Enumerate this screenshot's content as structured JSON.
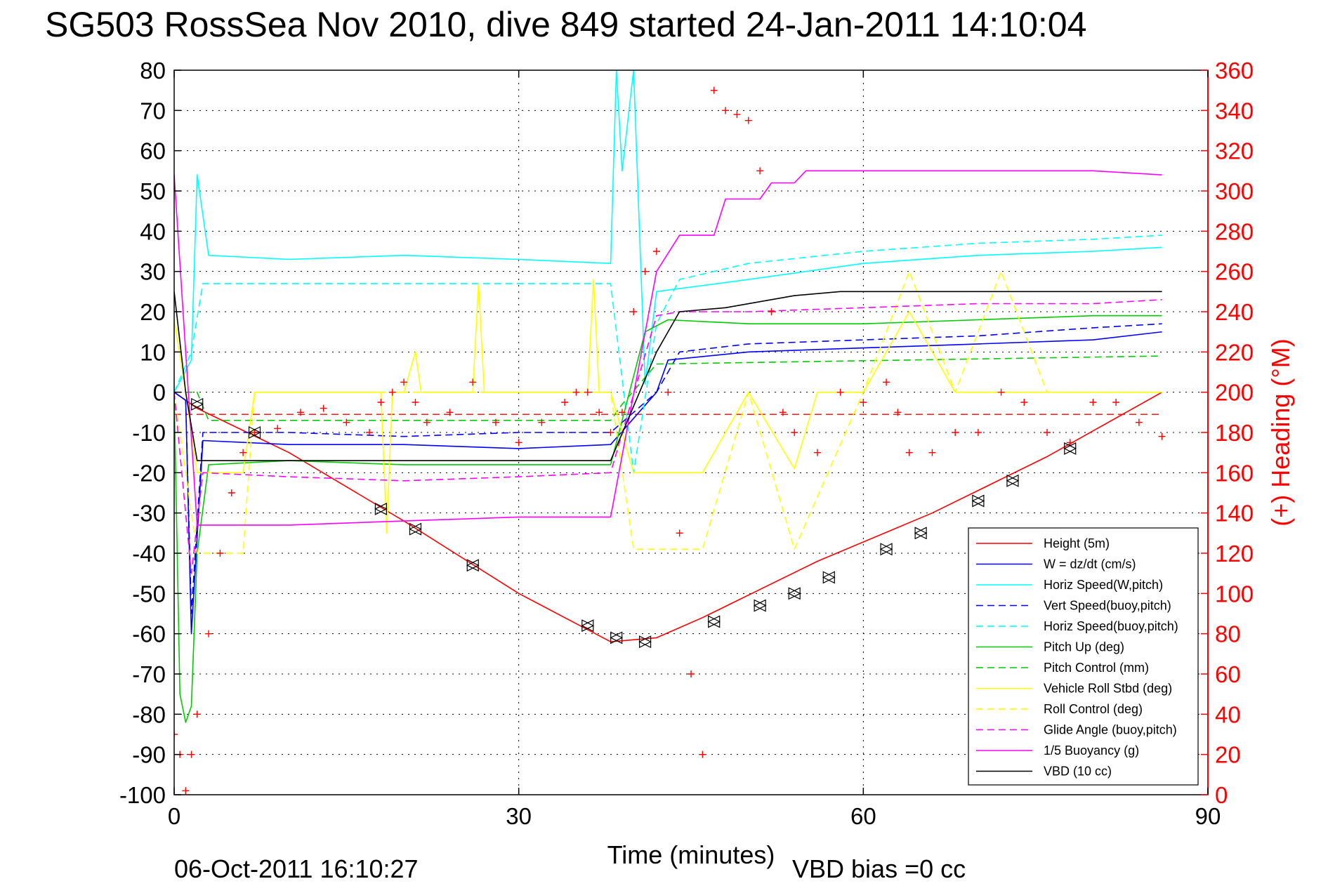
{
  "chart_data": {
    "type": "line",
    "title": "SG503 RossSea Nov 2010, dive 849 started 24-Jan-2011 14:10:04",
    "xlabel": "Time (minutes)",
    "ylabel": "",
    "y2label": "(+) Heading (°M)",
    "xlim": [
      0,
      90
    ],
    "ylim": [
      -100,
      80
    ],
    "y2lim": [
      0,
      360
    ],
    "x_ticks": [
      0,
      30,
      60,
      90
    ],
    "y_ticks": [
      80,
      70,
      60,
      50,
      40,
      30,
      20,
      10,
      0,
      -10,
      -20,
      -30,
      -40,
      -50,
      -60,
      -70,
      -80,
      -90,
      -100
    ],
    "y2_ticks": [
      360,
      340,
      320,
      300,
      280,
      260,
      240,
      220,
      200,
      180,
      160,
      140,
      120,
      100,
      80,
      60,
      40,
      20,
      0
    ],
    "grid": true,
    "legend_position": "bottom-right",
    "footer_date": "06-Oct-2011 16:10:27",
    "footer_note": "VBD bias =0 cc",
    "series": [
      {
        "name": "Height (5m)",
        "color": "#ff0000",
        "style": "solid",
        "x": [
          0,
          2,
          10,
          20,
          30,
          38,
          42,
          46,
          56,
          66,
          76,
          86
        ],
        "y": [
          0,
          -4,
          -15,
          -32,
          -50,
          -62,
          -61,
          -56,
          -42,
          -30,
          -16,
          0
        ]
      },
      {
        "name": "W = dz/dt (cm/s)",
        "color": "#0000ff",
        "style": "solid",
        "x": [
          0,
          1,
          1.5,
          2.5,
          10,
          20,
          30,
          38,
          42,
          43,
          50,
          60,
          70,
          80,
          86
        ],
        "y": [
          0,
          -2,
          -60,
          -12,
          -13,
          -13,
          -14,
          -13,
          0,
          8,
          10,
          11,
          12,
          13,
          15
        ]
      },
      {
        "name": "Horiz Speed(W,pitch)",
        "color": "#00ffff",
        "style": "solid",
        "x": [
          0,
          1.5,
          2,
          3,
          10,
          20,
          30,
          38,
          38.5,
          39,
          40,
          41,
          42,
          50,
          60,
          70,
          80,
          86
        ],
        "y": [
          0,
          8,
          54,
          34,
          33,
          34,
          33,
          32,
          80,
          55,
          80,
          2,
          25,
          28,
          32,
          34,
          35,
          36
        ]
      },
      {
        "name": "Vert Speed(buoy,pitch)",
        "color": "#0000ff",
        "style": "dashed",
        "x": [
          0,
          1,
          1.5,
          2.5,
          10,
          20,
          30,
          38,
          42,
          44,
          50,
          60,
          70,
          80,
          86
        ],
        "y": [
          0,
          -2,
          -55,
          -10,
          -10,
          -11,
          -10,
          -10,
          0,
          10,
          12,
          13,
          14,
          16,
          17
        ]
      },
      {
        "name": "Horiz Speed(buoy,pitch)",
        "color": "#00ffff",
        "style": "dashed",
        "x": [
          0,
          1.5,
          2.5,
          10,
          20,
          30,
          38,
          40,
          42,
          44,
          50,
          60,
          70,
          80,
          86
        ],
        "y": [
          0,
          10,
          27,
          27,
          27,
          27,
          27,
          -20,
          17,
          28,
          32,
          35,
          37,
          38,
          39
        ]
      },
      {
        "name": "Pitch Up (deg)",
        "color": "#00cc00",
        "style": "solid",
        "x": [
          0,
          0.5,
          1,
          1.5,
          2,
          3,
          10,
          20,
          30,
          38,
          41,
          43,
          50,
          60,
          70,
          80,
          86
        ],
        "y": [
          0,
          -75,
          -82,
          -78,
          -40,
          -18,
          -17,
          -18,
          -18,
          -18,
          15,
          18,
          17,
          17,
          18,
          19,
          19
        ]
      },
      {
        "name": "Pitch Control (mm)",
        "color": "#00cc00",
        "style": "dashed",
        "x": [
          0,
          2,
          3,
          38,
          39,
          42,
          86
        ],
        "y": [
          0,
          0,
          -7,
          -7,
          -3,
          7,
          9
        ]
      },
      {
        "name": "Vehicle Roll Stbd (deg)",
        "color": "#ffff00",
        "style": "solid",
        "x": [
          0,
          1,
          2,
          3,
          6,
          7,
          18,
          18.5,
          19,
          20,
          21,
          21.5,
          26,
          26.5,
          27,
          36,
          36.5,
          37,
          38,
          40,
          46,
          50,
          54,
          56,
          60,
          64,
          68,
          72,
          76,
          80,
          86
        ],
        "y": [
          18,
          0,
          -20,
          -20,
          -20,
          0,
          0,
          -35,
          0,
          0,
          10,
          0,
          0,
          27,
          0,
          0,
          28,
          0,
          0,
          -20,
          -20,
          0,
          -19,
          0,
          0,
          20,
          0,
          0,
          0,
          0,
          0
        ]
      },
      {
        "name": "Roll Control (deg)",
        "color": "#ffff00",
        "style": "dashed",
        "x": [
          0,
          2,
          3,
          6,
          7,
          38,
          40,
          46,
          50,
          54,
          60,
          64,
          68,
          72,
          76,
          86
        ],
        "y": [
          0,
          -40,
          -40,
          -40,
          0,
          0,
          -39,
          -39,
          0,
          -39,
          0,
          30,
          0,
          30,
          0,
          0
        ]
      },
      {
        "name": "Glide Angle (buoy,pitch)",
        "color": "#ff00ff",
        "style": "dashed",
        "x": [
          0,
          1.5,
          2.5,
          10,
          20,
          30,
          38,
          42,
          44,
          50,
          60,
          70,
          80,
          86
        ],
        "y": [
          0,
          -45,
          -20,
          -21,
          -22,
          -21,
          -20,
          19,
          20,
          20,
          21,
          22,
          22,
          23
        ]
      },
      {
        "name": "1/5 Buoyancy (g)",
        "color": "#ff00ff",
        "style": "solid",
        "x": [
          0,
          1,
          2,
          10,
          20,
          30,
          38,
          42,
          44,
          47,
          48,
          51,
          52,
          54,
          55,
          80,
          86
        ],
        "y": [
          54,
          10,
          -33,
          -33,
          -32,
          -31,
          -31,
          30,
          39,
          39,
          48,
          48,
          52,
          52,
          55,
          55,
          54
        ]
      },
      {
        "name": "VBD (10 cc)",
        "color": "#000000",
        "style": "solid",
        "x": [
          0,
          1,
          2,
          10,
          20,
          30,
          38,
          42,
          44,
          48,
          52,
          54,
          58,
          86
        ],
        "y": [
          25,
          0,
          -17,
          -17,
          -17,
          -17,
          -17,
          10,
          20,
          21,
          23,
          24,
          25,
          25
        ]
      }
    ],
    "heading_series": {
      "color": "#ff0000",
      "marker": "+",
      "axis": "right",
      "x": [
        0,
        0.5,
        1,
        1.5,
        2,
        3,
        4,
        5,
        6,
        7,
        9,
        11,
        13,
        15,
        17,
        18,
        19,
        20,
        21,
        22,
        24,
        26,
        28,
        30,
        32,
        34,
        35,
        36,
        37,
        38,
        39,
        40,
        41,
        42,
        43,
        44,
        45,
        46,
        47,
        48,
        49,
        50,
        51,
        52,
        53,
        54,
        56,
        58,
        60,
        62,
        63,
        64,
        66,
        68,
        70,
        72,
        74,
        76,
        78,
        80,
        82,
        84,
        86
      ],
      "y": [
        30,
        20,
        2,
        20,
        40,
        80,
        120,
        150,
        170,
        180,
        182,
        190,
        192,
        185,
        180,
        195,
        200,
        205,
        195,
        185,
        190,
        205,
        185,
        175,
        185,
        195,
        200,
        200,
        190,
        180,
        190,
        240,
        260,
        270,
        200,
        130,
        60,
        20,
        350,
        340,
        338,
        335,
        310,
        240,
        190,
        180,
        170,
        200,
        195,
        205,
        190,
        170,
        170,
        180,
        180,
        200,
        195,
        180,
        175,
        195,
        195,
        185,
        178
      ]
    },
    "height_markers": [
      {
        "x": 2.0,
        "y": -3
      },
      {
        "x": 7.0,
        "y": -10
      },
      {
        "x": 18.0,
        "y": -29
      },
      {
        "x": 21.0,
        "y": -34
      },
      {
        "x": 26.0,
        "y": -43
      },
      {
        "x": 36.0,
        "y": -58
      },
      {
        "x": 38.5,
        "y": -61
      },
      {
        "x": 41.0,
        "y": -62
      },
      {
        "x": 47.0,
        "y": -57
      },
      {
        "x": 51.0,
        "y": -53
      },
      {
        "x": 54.0,
        "y": -50
      },
      {
        "x": 57.0,
        "y": -46
      },
      {
        "x": 62.0,
        "y": -39
      },
      {
        "x": 65.0,
        "y": -35
      },
      {
        "x": 70.0,
        "y": -27
      },
      {
        "x": 73.0,
        "y": -22
      },
      {
        "x": 78.0,
        "y": -14
      }
    ],
    "reference_lines": [
      {
        "color": "#ff0000",
        "style": "dashed",
        "y": -5.5
      }
    ]
  }
}
